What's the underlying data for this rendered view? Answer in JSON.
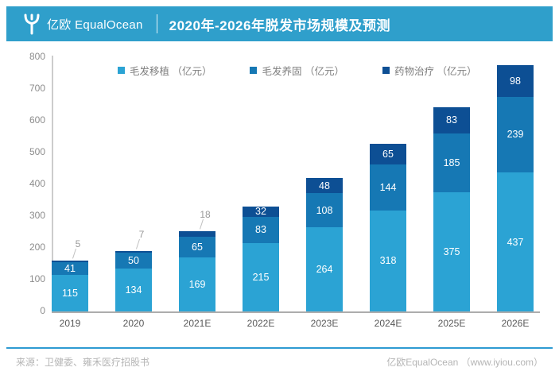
{
  "header": {
    "logo_text": "亿欧 EqualOcean",
    "title": "2020年-2026年脱发市场规模及预测"
  },
  "colors": {
    "header_bg": "#2F9FCB",
    "footer_line": "#2E9BD2",
    "axis_line": "#CCCCCC",
    "baseline": "#ADADAD",
    "ytick_text": "#8C8C8C",
    "xtick_text": "#595959",
    "legend_text": "#7F7F7F",
    "callout_text": "#999999",
    "callout_line": "#C0C0C0",
    "footer_text": "#B5B5B5"
  },
  "chart_data": {
    "type": "bar",
    "stacked": true,
    "title": "2020年-2026年脱发市场规模及预测",
    "categories": [
      "2019",
      "2020",
      "2021E",
      "2022E",
      "2023E",
      "2024E",
      "2025E",
      "2026E"
    ],
    "series": [
      {
        "name": "毛发移植",
        "legend_label": "毛发移植 （亿元）",
        "color": "#2BA3D4",
        "values": [
          115,
          134,
          169,
          215,
          264,
          318,
          375,
          437
        ]
      },
      {
        "name": "毛发养固",
        "legend_label": "毛发养固 （亿元）",
        "color": "#1678B4",
        "values": [
          41,
          50,
          65,
          83,
          108,
          144,
          185,
          239
        ]
      },
      {
        "name": "药物治疗",
        "legend_label": "药物治疗 （亿元）",
        "color": "#0D4F94",
        "values": [
          5,
          7,
          18,
          32,
          48,
          65,
          83,
          98
        ]
      }
    ],
    "ylim": [
      0,
      800
    ],
    "yticks": [
      0,
      100,
      200,
      300,
      400,
      500,
      600,
      700,
      800
    ],
    "grid": false,
    "legend_position": "top",
    "xlabel": "",
    "ylabel": ""
  },
  "footer": {
    "source": "来源：卫健委、雍禾医疗招股书",
    "credit": "亿欧EqualOcean （www.iyiou.com）"
  }
}
